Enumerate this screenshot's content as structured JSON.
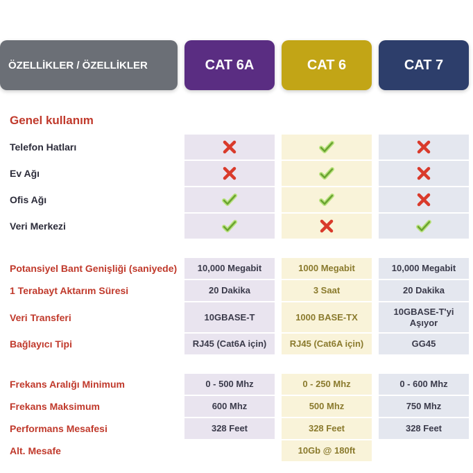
{
  "header": {
    "label_bg": "#6b6f76",
    "label_text": "ÖZELLİKLER / ÖZELLİKLER",
    "columns": [
      {
        "name": "CAT 6A",
        "bg": "#5a2d82",
        "cell_bg": "#e9e4ef",
        "cell_text": "#3a3a4a"
      },
      {
        "name": "CAT 6",
        "bg": "#c2a516",
        "cell_bg": "#f9f3d9",
        "cell_text": "#8a7a2d"
      },
      {
        "name": "CAT 7",
        "bg": "#2d3e6b",
        "cell_bg": "#e4e7ef",
        "cell_text": "#3a3a4a"
      }
    ]
  },
  "sections": [
    {
      "title": "Genel kullanım",
      "label_style": "dark",
      "rows": [
        {
          "label": "Telefon Hatları",
          "cells": [
            {
              "icon": "cross"
            },
            {
              "icon": "check"
            },
            {
              "icon": "cross"
            }
          ]
        },
        {
          "label": "Ev Ağı",
          "cells": [
            {
              "icon": "cross"
            },
            {
              "icon": "check"
            },
            {
              "icon": "cross"
            }
          ]
        },
        {
          "label": "Ofis Ağı",
          "cells": [
            {
              "icon": "check"
            },
            {
              "icon": "check"
            },
            {
              "icon": "cross"
            }
          ]
        },
        {
          "label": "Veri Merkezi",
          "cells": [
            {
              "icon": "check"
            },
            {
              "icon": "cross"
            },
            {
              "icon": "check"
            }
          ]
        }
      ]
    },
    {
      "title": "",
      "label_style": "red",
      "rows": [
        {
          "label": "Potansiyel Bant Genişliği (saniyede)",
          "cells": [
            {
              "text": "10,000 Megabit"
            },
            {
              "text": "1000 Megabit"
            },
            {
              "text": "10,000 Megabit"
            }
          ]
        },
        {
          "label": "1 Terabayt Aktarım Süresi",
          "cells": [
            {
              "text": "20 Dakika"
            },
            {
              "text": "3 Saat"
            },
            {
              "text": "20 Dakika"
            }
          ]
        },
        {
          "label": "Veri Transferi",
          "cells": [
            {
              "text": "10GBASE-T"
            },
            {
              "text": "1000 BASE-TX"
            },
            {
              "text": "10GBASE-T'yi Aşıyor"
            }
          ]
        },
        {
          "label": "Bağlayıcı Tipi",
          "cells": [
            {
              "text": "RJ45 (Cat6A için)"
            },
            {
              "text": "RJ45 (Cat6A için)"
            },
            {
              "text": "GG45"
            }
          ]
        }
      ]
    },
    {
      "title": "",
      "label_style": "red",
      "rows": [
        {
          "label": "Frekans Aralığı Minimum",
          "cells": [
            {
              "text": "0 - 500 Mhz"
            },
            {
              "text": "0 - 250 Mhz"
            },
            {
              "text": "0 - 600 Mhz"
            }
          ]
        },
        {
          "label": "Frekans Maksimum",
          "cells": [
            {
              "text": "600 Mhz"
            },
            {
              "text": "500 Mhz"
            },
            {
              "text": "750 Mhz"
            }
          ]
        },
        {
          "label": "Performans Mesafesi",
          "cells": [
            {
              "text": "328 Feet"
            },
            {
              "text": "328 Feet"
            },
            {
              "text": "328 Feet"
            }
          ]
        },
        {
          "label": "Alt. Mesafe",
          "cells": [
            {
              "text": ""
            },
            {
              "text": "10Gb @ 180ft"
            },
            {
              "text": ""
            }
          ]
        }
      ]
    }
  ],
  "icons": {
    "check_stroke": "#6aa331",
    "check_fill": "#b9e27d",
    "cross_color": "#d93a2b"
  }
}
